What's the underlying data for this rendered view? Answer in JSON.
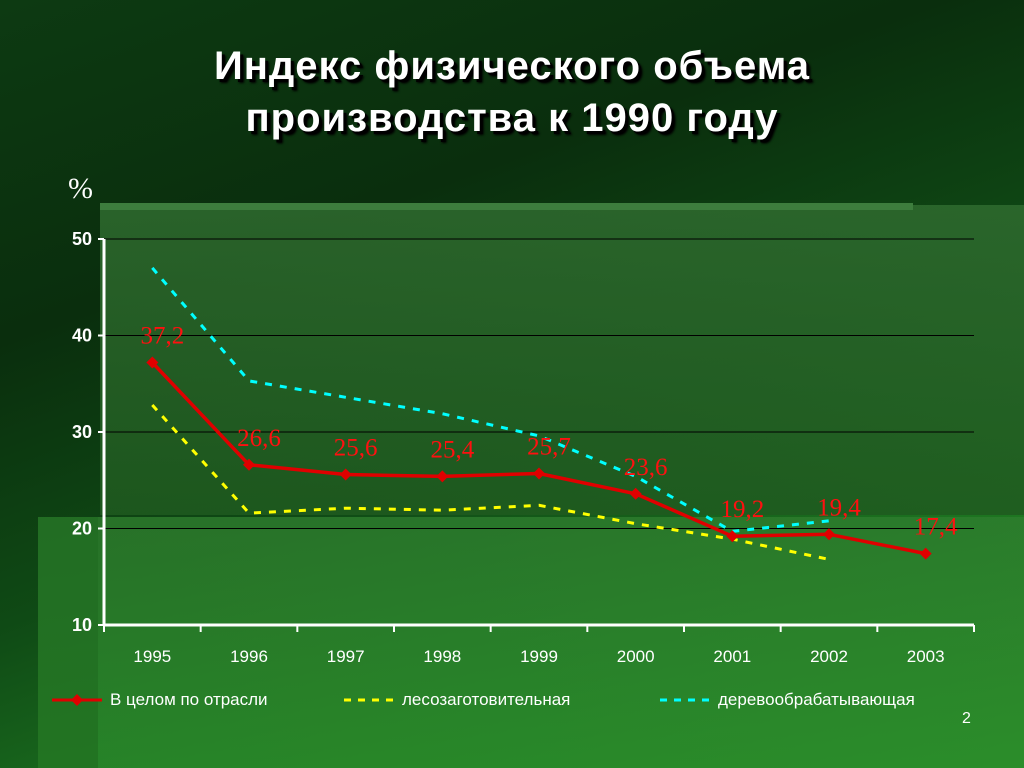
{
  "title_line1": "Индекс физического объема",
  "title_line2": "производства к 1990 году",
  "page_number": "2",
  "colors": {
    "total": "#e00000",
    "logging": "#ffff00",
    "woodworking": "#00ffff",
    "label": "#ff1010",
    "axis": "#ffffff",
    "grid": "#000000"
  },
  "chart_data": {
    "type": "line",
    "ylabel": "%",
    "xlabel": "",
    "ylim": [
      10,
      50
    ],
    "yticks": [
      "10",
      "20",
      "30",
      "40",
      "50"
    ],
    "grid": "horizontal",
    "legend_position": "bottom",
    "categories": [
      "1995",
      "1996",
      "1997",
      "1998",
      "1999",
      "2000",
      "2001",
      "2002",
      "2003"
    ],
    "series": [
      {
        "name": "В целом по отрасли",
        "style": "solid-diamond",
        "values": [
          37.2,
          26.6,
          25.6,
          25.4,
          25.7,
          23.6,
          19.2,
          19.4,
          17.4
        ],
        "labels": [
          "37,2",
          "26,6",
          "25,6",
          "25,4",
          "25,7",
          "23,6",
          "19,2",
          "19,4",
          "17,4"
        ]
      },
      {
        "name": "лесозаготовительная",
        "style": "dashed",
        "values": [
          32.8,
          21.6,
          22.1,
          21.9,
          22.4,
          20.5,
          18.9,
          16.8,
          null
        ]
      },
      {
        "name": "деревообрабатывающая",
        "style": "dashed",
        "values": [
          47.0,
          35.3,
          33.6,
          31.9,
          29.6,
          25.4,
          19.7,
          20.8,
          null
        ]
      }
    ]
  }
}
